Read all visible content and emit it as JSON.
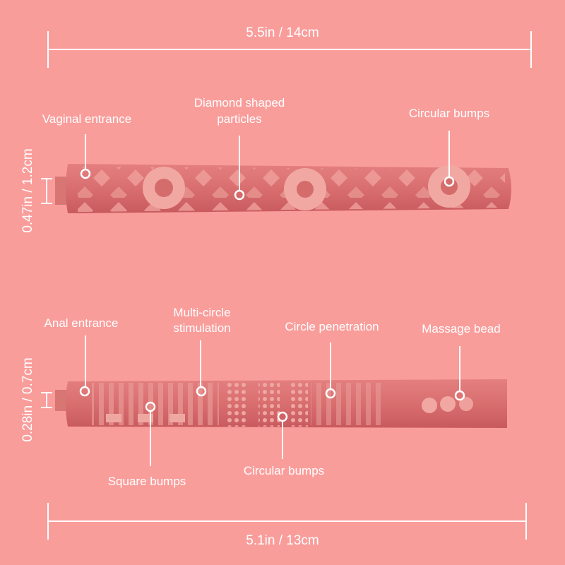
{
  "background_color": "#F99D9B",
  "top_product": {
    "length_label": "5.5in / 14cm",
    "diameter_label": "0.47in / 1.2cm",
    "callouts": [
      {
        "lines": [
          "Vaginal entrance"
        ]
      },
      {
        "lines": [
          "Diamond shaped",
          "particles"
        ]
      },
      {
        "lines": [
          "Circular bumps"
        ]
      }
    ]
  },
  "bottom_product": {
    "length_label": "5.1in / 13cm",
    "diameter_label": "0.28in / 0.7cm",
    "callouts": [
      {
        "lines": [
          "Anal entrance"
        ]
      },
      {
        "lines": [
          "Multi-circle",
          "stimulation"
        ]
      },
      {
        "lines": [
          "Circle penetration"
        ]
      },
      {
        "lines": [
          "Massage bead"
        ]
      },
      {
        "lines": [
          "Square bumps"
        ]
      },
      {
        "lines": [
          "Circular bumps"
        ]
      }
    ]
  }
}
